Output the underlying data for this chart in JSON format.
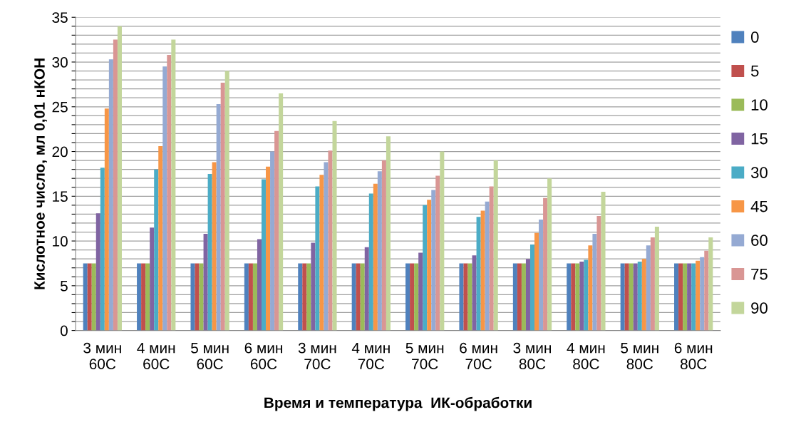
{
  "chart_data": {
    "type": "bar",
    "xlabel": "Время и температура  ИК-обработки",
    "ylabel": "Кислотное число, мл 0,01 нКОН",
    "categories": [
      "3 мин\n60С",
      "4 мин\n60С",
      "5 мин\n60С",
      "6 мин\n60С",
      "3 мин\n70С",
      "4 мин\n70С",
      "5 мин\n70С",
      "6 мин\n70С",
      "3 мин\n80С",
      "4 мин\n80С",
      "5 мин\n80С",
      "6 мин\n80С"
    ],
    "series": [
      {
        "name": "0",
        "color": "#4f81bd",
        "values": [
          7.5,
          7.5,
          7.5,
          7.5,
          7.5,
          7.5,
          7.5,
          7.5,
          7.5,
          7.5,
          7.5,
          7.5
        ]
      },
      {
        "name": "5",
        "color": "#c0504d",
        "values": [
          7.5,
          7.5,
          7.5,
          7.5,
          7.5,
          7.5,
          7.5,
          7.5,
          7.5,
          7.5,
          7.5,
          7.5
        ]
      },
      {
        "name": "10",
        "color": "#9bbb59",
        "values": [
          7.5,
          7.5,
          7.5,
          7.5,
          7.5,
          7.5,
          7.5,
          7.5,
          7.5,
          7.5,
          7.5,
          7.5
        ]
      },
      {
        "name": "15",
        "color": "#8064a2",
        "values": [
          13.1,
          11.5,
          10.8,
          10.2,
          9.8,
          9.3,
          8.7,
          8.4,
          8,
          7.7,
          7.5,
          7.5
        ]
      },
      {
        "name": "30",
        "color": "#4bacc6",
        "values": [
          18.2,
          18,
          17.5,
          16.9,
          16.1,
          15.3,
          14,
          12.7,
          9.6,
          7.9,
          7.7,
          7.5
        ]
      },
      {
        "name": "45",
        "color": "#f79646",
        "values": [
          24.8,
          20.6,
          18.8,
          18.3,
          17.4,
          16.4,
          14.6,
          13.4,
          10.9,
          9.5,
          8,
          7.8
        ]
      },
      {
        "name": "60",
        "color": "#95aad3",
        "values": [
          30.3,
          29.5,
          25.3,
          20,
          18.8,
          17.8,
          15.7,
          14.4,
          12.4,
          10.8,
          9.5,
          8.2
        ]
      },
      {
        "name": "75",
        "color": "#d99694",
        "values": [
          32.5,
          30.8,
          27.7,
          22.3,
          20.1,
          19,
          17.3,
          16.1,
          14.8,
          12.8,
          10.4,
          8.9
        ]
      },
      {
        "name": "90",
        "color": "#c3d69b",
        "values": [
          34,
          32.5,
          29,
          26.5,
          23.4,
          21.7,
          20,
          19,
          17,
          15.5,
          11.6,
          10.4
        ]
      }
    ],
    "ylim": [
      0,
      35
    ],
    "yticks": [
      0,
      {
        "value": 1,
        "label": null
      },
      {
        "value": 2,
        "label": null
      },
      {
        "value": 3,
        "label": null
      },
      {
        "value": 4,
        "label": null
      },
      5,
      {
        "value": 6,
        "label": null
      },
      {
        "value": 7,
        "label": null
      },
      {
        "value": 8,
        "label": null
      },
      {
        "value": 9,
        "label": null
      },
      10,
      {
        "value": 11,
        "label": null
      },
      {
        "value": 12,
        "label": null
      },
      {
        "value": 13,
        "label": null
      },
      {
        "value": 14,
        "label": null
      },
      15,
      {
        "value": 16,
        "label": null
      },
      {
        "value": 17,
        "label": null
      },
      {
        "value": 18,
        "label": null
      },
      {
        "value": 19,
        "label": null
      },
      20,
      {
        "value": 21,
        "label": null
      },
      {
        "value": 22,
        "label": null
      },
      {
        "value": 23,
        "label": null
      },
      {
        "value": 24,
        "label": null
      },
      25,
      {
        "value": 26,
        "label": null
      },
      {
        "value": 27,
        "label": null
      },
      {
        "value": 28,
        "label": null
      },
      {
        "value": 29,
        "label": null
      },
      30,
      {
        "value": 31,
        "label": null
      },
      {
        "value": 32,
        "label": null
      },
      {
        "value": 33,
        "label": null
      },
      {
        "value": 34,
        "label": null
      },
      35
    ],
    "grid": "y",
    "legend": "right"
  }
}
